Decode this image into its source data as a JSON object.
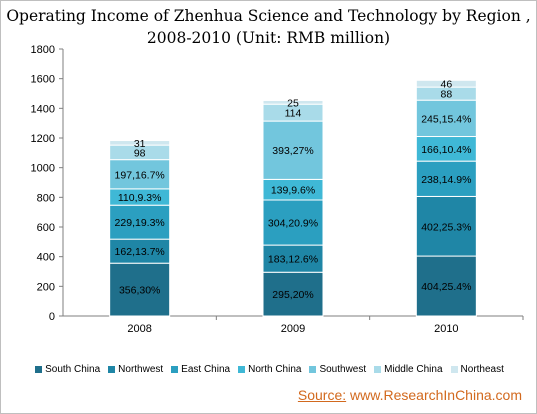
{
  "chart_data": {
    "type": "bar",
    "stacked": true,
    "title_line1": "Operating Income of Zhenhua Science and Technology by Region ,",
    "title_line2": "2008-2010 (Unit: RMB million)",
    "categories": [
      "2008",
      "2009",
      "2010"
    ],
    "ylim": [
      0,
      1800
    ],
    "yticks": [
      "0",
      "200",
      "400",
      "600",
      "800",
      "1000",
      "1200",
      "1400",
      "1600",
      "1800"
    ],
    "grid": false,
    "legend_position": "bottom",
    "series": [
      {
        "name": "South China",
        "color": "#1f6f8b",
        "values": [
          356,
          295,
          404
        ],
        "labels": [
          "356,30%",
          "295,20%",
          "404,25.4%"
        ]
      },
      {
        "name": "Northwest",
        "color": "#1f86a6",
        "values": [
          162,
          183,
          402
        ],
        "labels": [
          "162,13.7%",
          "183,12.6%",
          "402,25.3%"
        ]
      },
      {
        "name": "East China",
        "color": "#2b9fc0",
        "values": [
          229,
          304,
          238
        ],
        "labels": [
          "229,19.3%",
          "304,20.9%",
          "238,14.9%"
        ]
      },
      {
        "name": "North China",
        "color": "#3fb8d6",
        "values": [
          110,
          139,
          166
        ],
        "labels": [
          "110,9.3%",
          "139,9.6%",
          "166,10.4%"
        ]
      },
      {
        "name": "Southwest",
        "color": "#72c6dd",
        "values": [
          197,
          393,
          245
        ],
        "labels": [
          "197,16.7%",
          "393,27%",
          "245,15.4%"
        ]
      },
      {
        "name": "Middle China",
        "color": "#a9dbe9",
        "values": [
          98,
          114,
          88
        ],
        "labels": [
          "98",
          "114",
          "88"
        ]
      },
      {
        "name": "Northeast",
        "color": "#cfe7ef",
        "values": [
          31,
          25,
          46
        ],
        "labels": [
          "31",
          "25",
          "46"
        ]
      }
    ]
  },
  "source": {
    "label": "Source:",
    "text": "www.ResearchInChina.com"
  }
}
